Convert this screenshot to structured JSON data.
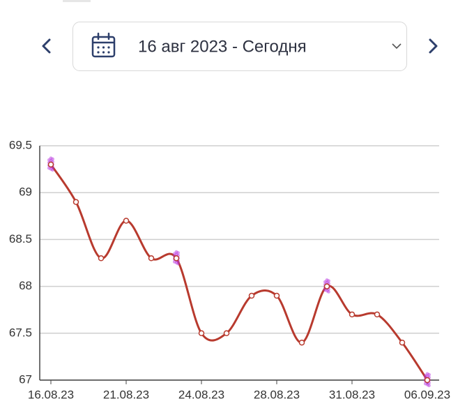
{
  "header": {
    "date_range": "16 авг 2023 - Сегодня"
  },
  "chart_data": {
    "type": "line",
    "categories": [
      "16.08.23",
      null,
      null,
      "21.08.23",
      null,
      null,
      "24.08.23",
      null,
      null,
      "28.08.23",
      null,
      null,
      "31.08.23",
      null,
      null,
      "06.09.23"
    ],
    "series": [
      {
        "color": "#b83a2e",
        "values": [
          69.3,
          68.9,
          68.3,
          68.7,
          68.3,
          68.3,
          67.5,
          67.5,
          67.9,
          67.9,
          67.4,
          68.0,
          67.7,
          67.7,
          67.4,
          67.0
        ]
      }
    ],
    "highlights": [
      0,
      5,
      11,
      15
    ],
    "highlight_color": "#b832e0",
    "ylim": [
      67,
      69.5
    ],
    "yticks": [
      67,
      67.5,
      68,
      68.5,
      69,
      69.5
    ],
    "grid": true
  }
}
